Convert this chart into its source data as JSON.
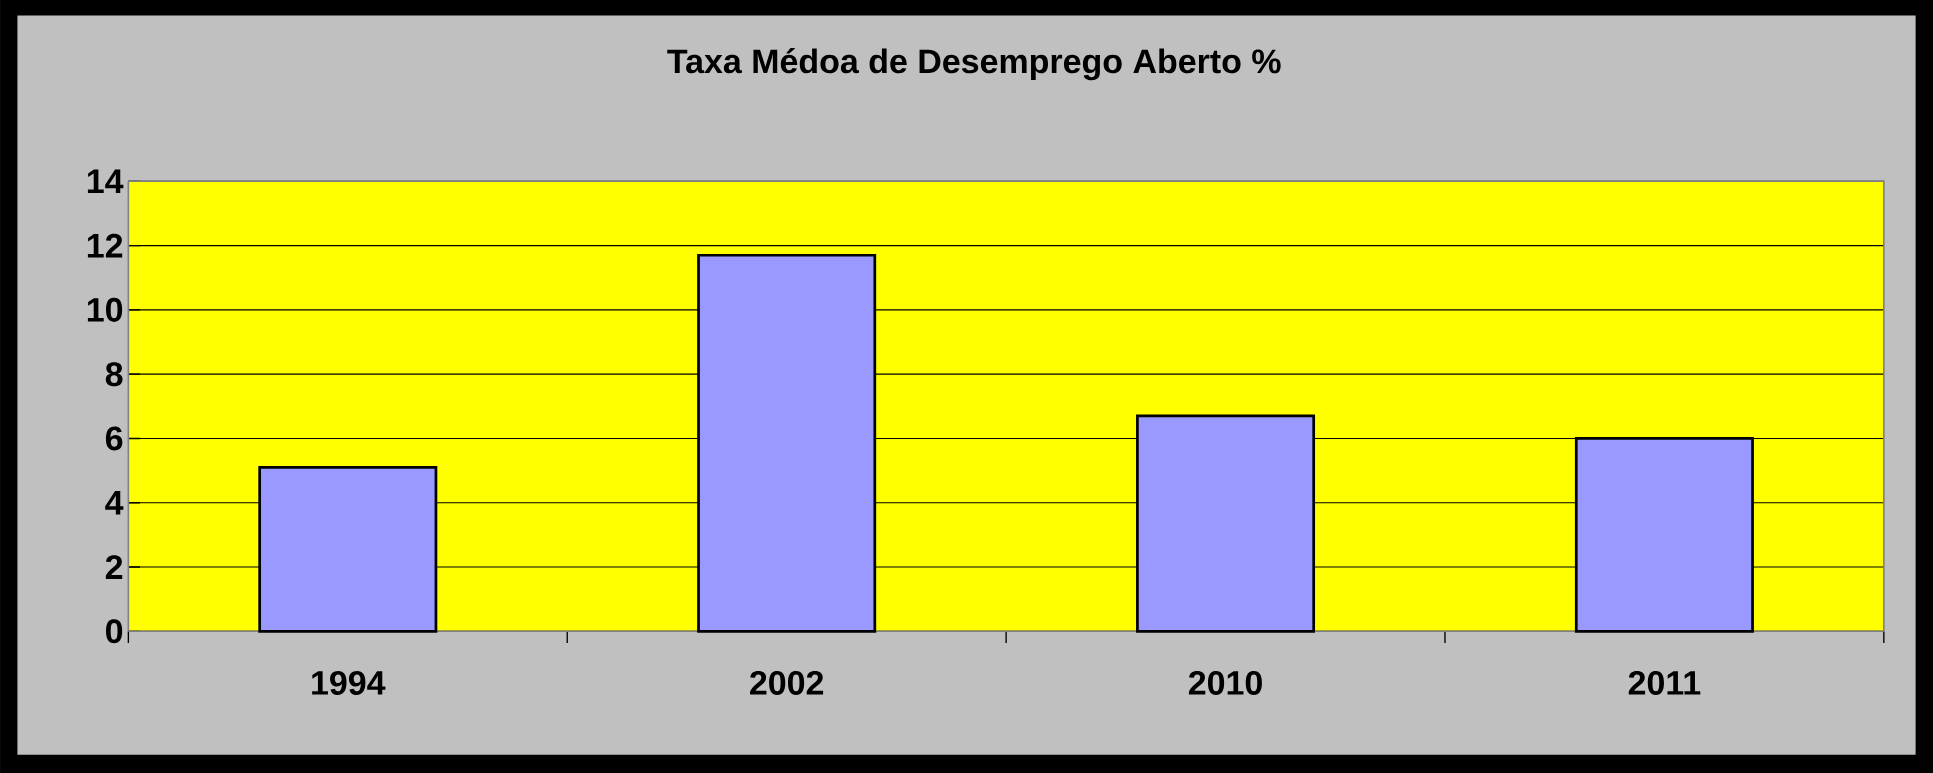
{
  "chart_data": {
    "type": "bar",
    "title": "Taxa Médoa de Desemprego Aberto %",
    "categories": [
      "1994",
      "2002",
      "2010",
      "2011"
    ],
    "values": [
      5.1,
      11.7,
      6.7,
      6.0
    ],
    "color": "#9999ff",
    "ylim": [
      0,
      14
    ],
    "yticks": [
      0,
      2,
      4,
      6,
      8,
      10,
      12,
      14
    ],
    "grid": "y"
  }
}
